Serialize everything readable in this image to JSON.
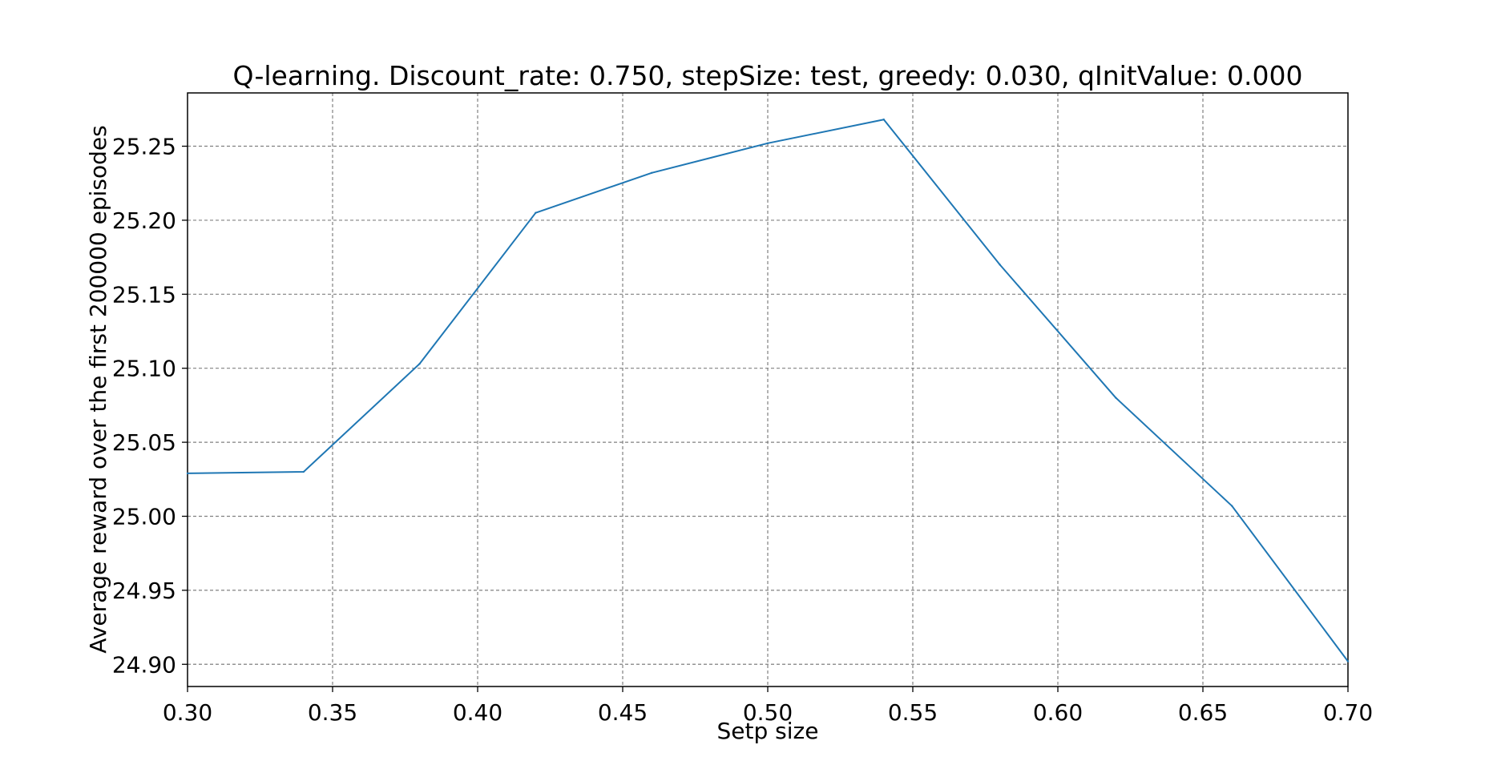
{
  "chart_data": {
    "type": "line",
    "title": "Q-learning. Discount_rate: 0.750, stepSize: test, greedy: 0.030, qInitValue: 0.000",
    "xlabel": "Setp size",
    "ylabel": "Average reward over the first 200000 episodes",
    "xlim": [
      0.3,
      0.7
    ],
    "ylim": [
      24.885,
      25.286
    ],
    "grid": true,
    "grid_style": "dashed",
    "x_ticks": [
      "0.30",
      "0.35",
      "0.40",
      "0.45",
      "0.50",
      "0.55",
      "0.60",
      "0.65",
      "0.70"
    ],
    "y_ticks": [
      "24.90",
      "24.95",
      "25.00",
      "25.05",
      "25.10",
      "25.15",
      "25.20",
      "25.25"
    ],
    "series": [
      {
        "color": "#1f77b4",
        "x": [
          0.3,
          0.34,
          0.38,
          0.42,
          0.46,
          0.5,
          0.54,
          0.58,
          0.62,
          0.66,
          0.7
        ],
        "y": [
          25.029,
          25.03,
          25.103,
          25.205,
          25.232,
          25.252,
          25.268,
          25.17,
          25.08,
          25.007,
          24.902
        ]
      }
    ]
  }
}
